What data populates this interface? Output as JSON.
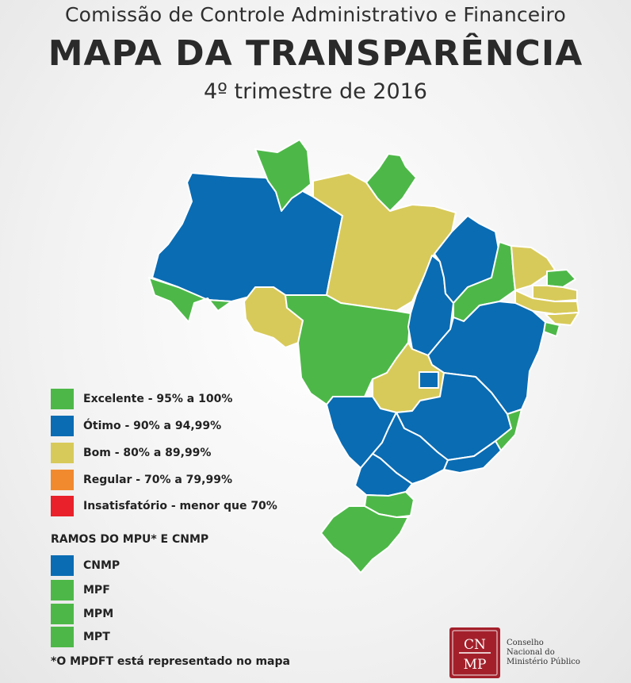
{
  "header": {
    "subtitle": "Comissão de Controle Administrativo e Financeiro",
    "title": "MAPA DA TRANSPARÊNCIA",
    "period": "4º trimestre de 2016"
  },
  "colors": {
    "excelente": "#4db848",
    "otimo": "#0a6cb3",
    "bom": "#d8ca5a",
    "regular": "#f18a2f",
    "insatisfatorio": "#e8212a"
  },
  "legend": [
    {
      "label": "Excelente - 95% a 100%",
      "color": "#4db848"
    },
    {
      "label": "Ótimo - 90% a 94,99%",
      "color": "#0a6cb3"
    },
    {
      "label": "Bom - 80% a 89,99%",
      "color": "#d8ca5a"
    },
    {
      "label": "Regular - 70% a 79,99%",
      "color": "#f18a2f"
    },
    {
      "label": "Insatisfatório - menor que 70%",
      "color": "#e8212a"
    }
  ],
  "ramos": {
    "title": "RAMOS DO MPU* E CNMP",
    "items": [
      {
        "label": "CNMP",
        "color": "#0a6cb3"
      },
      {
        "label": "MPF",
        "color": "#4db848"
      },
      {
        "label": "MPM",
        "color": "#4db848"
      },
      {
        "label": "MPT",
        "color": "#4db848"
      }
    ]
  },
  "footnote": "*O MPDFT está representado no mapa",
  "logo": {
    "mark_top": "CN",
    "mark_bottom": "MP",
    "lines": [
      "Conselho",
      "Nacional do",
      "Ministério Público"
    ]
  },
  "states": [
    {
      "name": "AM",
      "rating": "otimo"
    },
    {
      "name": "RR",
      "rating": "excelente"
    },
    {
      "name": "AP",
      "rating": "excelente"
    },
    {
      "name": "PA",
      "rating": "bom"
    },
    {
      "name": "AC",
      "rating": "excelente"
    },
    {
      "name": "RO",
      "rating": "bom"
    },
    {
      "name": "MT",
      "rating": "excelente"
    },
    {
      "name": "TO",
      "rating": "otimo"
    },
    {
      "name": "MA",
      "rating": "otimo"
    },
    {
      "name": "PI",
      "rating": "excelente"
    },
    {
      "name": "CE",
      "rating": "bom"
    },
    {
      "name": "RN",
      "rating": "excelente"
    },
    {
      "name": "PB",
      "rating": "bom"
    },
    {
      "name": "PE",
      "rating": "bom"
    },
    {
      "name": "AL",
      "rating": "bom"
    },
    {
      "name": "SE",
      "rating": "excelente"
    },
    {
      "name": "BA",
      "rating": "otimo"
    },
    {
      "name": "GO",
      "rating": "bom"
    },
    {
      "name": "DF",
      "rating": "otimo"
    },
    {
      "name": "MS",
      "rating": "otimo"
    },
    {
      "name": "MG",
      "rating": "otimo"
    },
    {
      "name": "ES",
      "rating": "excelente"
    },
    {
      "name": "SP",
      "rating": "otimo"
    },
    {
      "name": "RJ",
      "rating": "otimo"
    },
    {
      "name": "PR",
      "rating": "otimo"
    },
    {
      "name": "SC",
      "rating": "excelente"
    },
    {
      "name": "RS",
      "rating": "excelente"
    }
  ]
}
